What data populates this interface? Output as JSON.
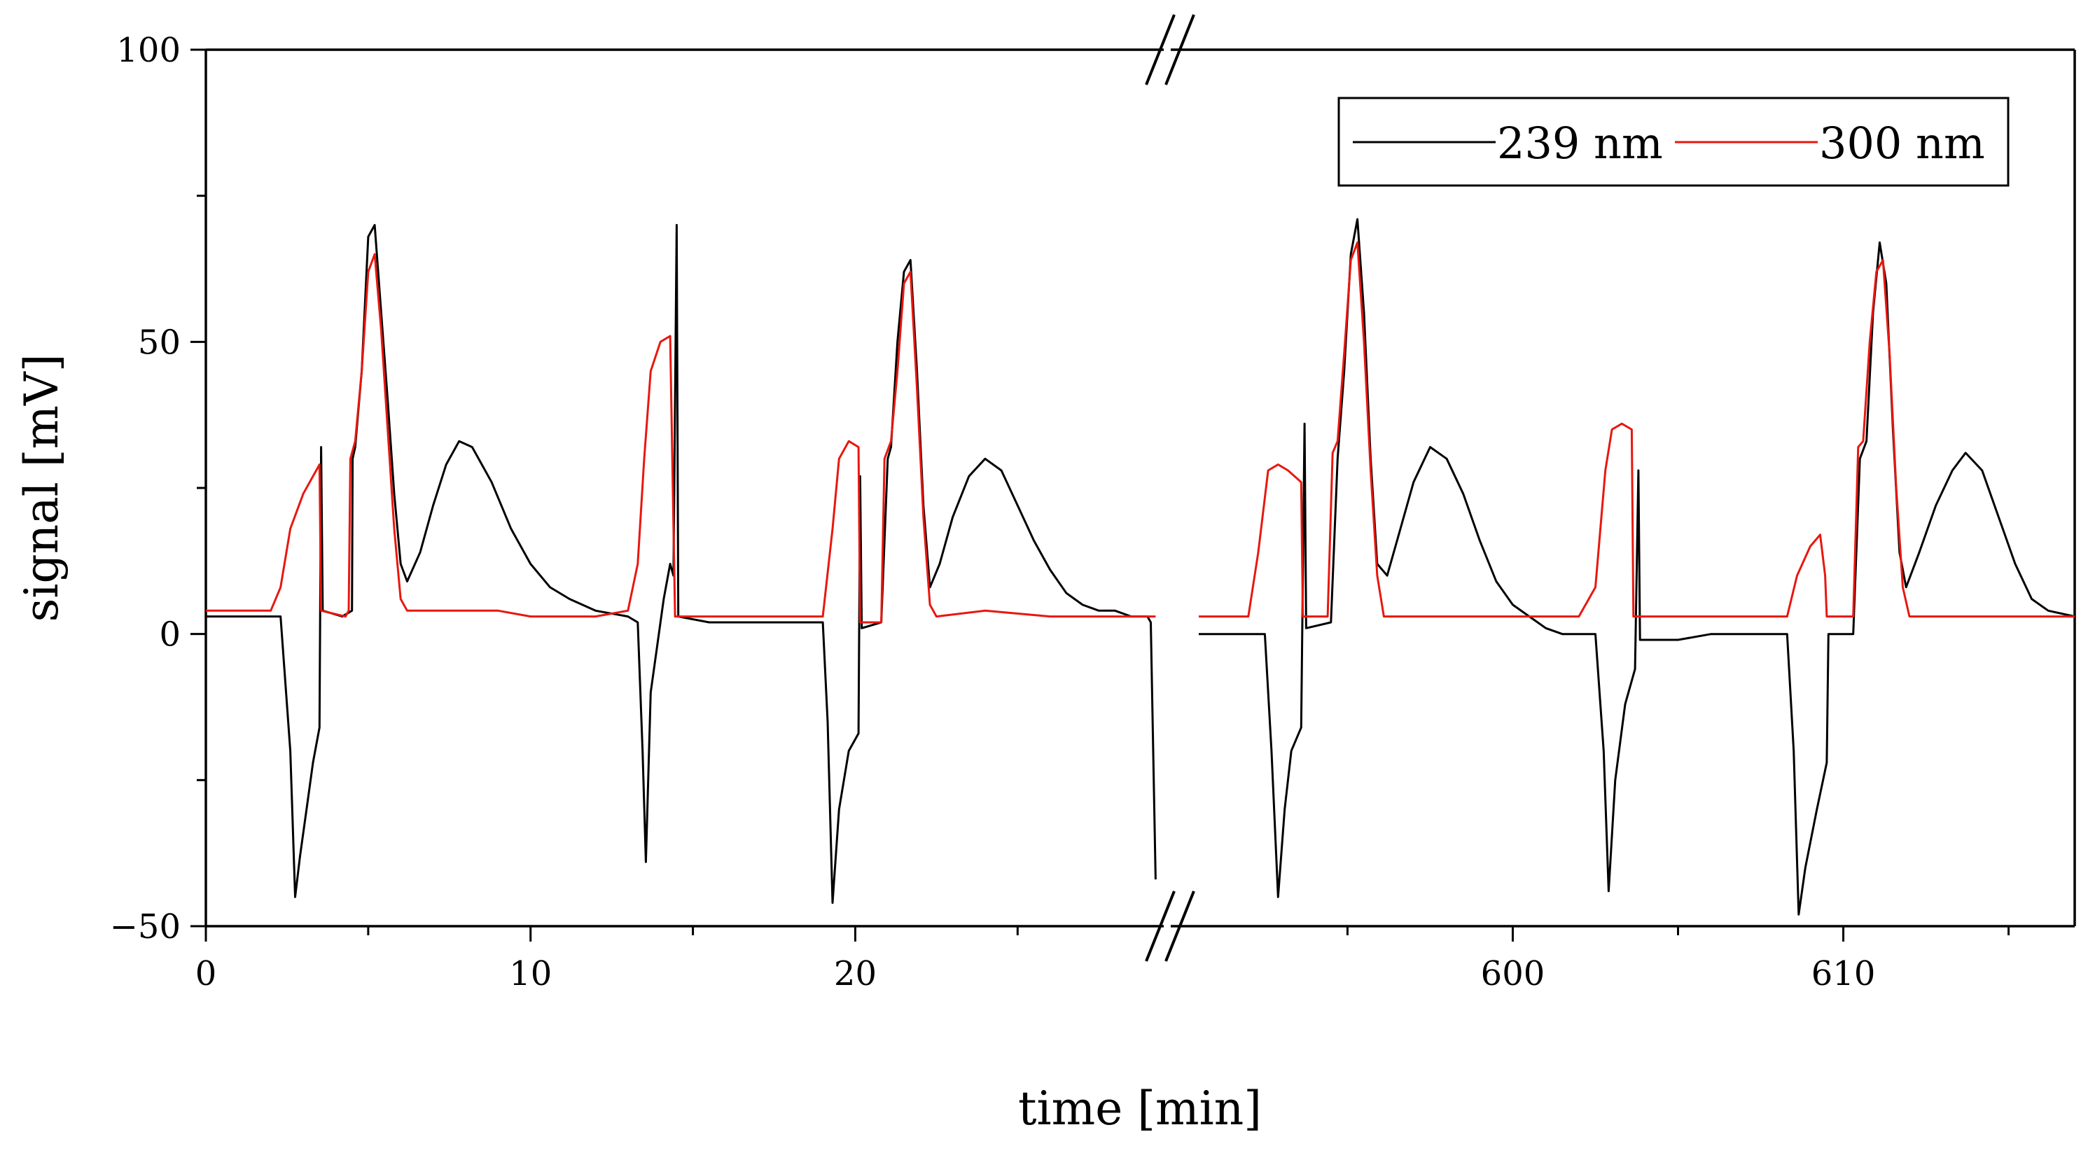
{
  "chart_data": {
    "type": "line",
    "title": "",
    "xlabel": "time [min]",
    "ylabel": "signal [mV]",
    "ylim": [
      -50,
      100
    ],
    "yticks": [
      -50,
      0,
      50,
      100
    ],
    "yticks_minor": [
      -25,
      25,
      75
    ],
    "x_segments": [
      {
        "xlim": [
          0,
          29.5
        ],
        "ticks": [
          0,
          10,
          20
        ],
        "minor_ticks": [
          5,
          15,
          25
        ]
      },
      {
        "xlim": [
          590.5,
          617
        ],
        "ticks": [
          600,
          610
        ],
        "minor_ticks": [
          595,
          605,
          615
        ]
      }
    ],
    "axis_break": "true",
    "legend": {
      "position": "top-right"
    },
    "series": [
      {
        "name": "239 nm",
        "color": "#000000",
        "segments": [
          [
            [
              0,
              3
            ],
            [
              2.3,
              3
            ],
            [
              2.6,
              -20
            ],
            [
              2.75,
              -45
            ],
            [
              2.9,
              -38
            ],
            [
              3.1,
              -30
            ],
            [
              3.3,
              -22
            ],
            [
              3.5,
              -16
            ],
            [
              3.55,
              32
            ],
            [
              3.6,
              4
            ],
            [
              4.2,
              3
            ],
            [
              4.5,
              4
            ],
            [
              4.52,
              30
            ],
            [
              4.6,
              32
            ],
            [
              4.8,
              45
            ],
            [
              5.0,
              68
            ],
            [
              5.2,
              70
            ],
            [
              5.4,
              55
            ],
            [
              5.6,
              40
            ],
            [
              5.8,
              24
            ],
            [
              6.0,
              12
            ],
            [
              6.2,
              9
            ],
            [
              6.6,
              14
            ],
            [
              7.0,
              22
            ],
            [
              7.4,
              29
            ],
            [
              7.8,
              33
            ],
            [
              8.2,
              32
            ],
            [
              8.8,
              26
            ],
            [
              9.4,
              18
            ],
            [
              10.0,
              12
            ],
            [
              10.6,
              8
            ],
            [
              11.2,
              6
            ],
            [
              12.0,
              4
            ],
            [
              13.0,
              3
            ],
            [
              13.3,
              2
            ],
            [
              13.45,
              -20
            ],
            [
              13.55,
              -39
            ],
            [
              13.7,
              -10
            ],
            [
              13.9,
              -2
            ],
            [
              14.1,
              6
            ],
            [
              14.3,
              12
            ],
            [
              14.4,
              10
            ],
            [
              14.5,
              70
            ],
            [
              14.55,
              3
            ],
            [
              15.5,
              2
            ],
            [
              17.0,
              2
            ],
            [
              19.0,
              2
            ],
            [
              19.15,
              -15
            ],
            [
              19.3,
              -46
            ],
            [
              19.5,
              -30
            ],
            [
              19.8,
              -20
            ],
            [
              20.1,
              -17
            ],
            [
              20.15,
              27
            ],
            [
              20.2,
              1
            ],
            [
              20.8,
              2
            ],
            [
              21.0,
              30
            ],
            [
              21.1,
              32
            ],
            [
              21.3,
              50
            ],
            [
              21.5,
              62
            ],
            [
              21.7,
              64
            ],
            [
              21.9,
              45
            ],
            [
              22.1,
              22
            ],
            [
              22.3,
              8
            ],
            [
              22.6,
              12
            ],
            [
              23.0,
              20
            ],
            [
              23.5,
              27
            ],
            [
              24.0,
              30
            ],
            [
              24.5,
              28
            ],
            [
              25.0,
              22
            ],
            [
              25.5,
              16
            ],
            [
              26.0,
              11
            ],
            [
              26.5,
              7
            ],
            [
              27.0,
              5
            ],
            [
              27.5,
              4
            ],
            [
              28.0,
              4
            ],
            [
              28.5,
              3
            ],
            [
              29.0,
              3
            ],
            [
              29.1,
              2
            ],
            [
              29.25,
              -42
            ]
          ],
          [
            [
              590.5,
              0
            ],
            [
              592.5,
              0
            ],
            [
              592.7,
              -20
            ],
            [
              592.9,
              -45
            ],
            [
              593.1,
              -30
            ],
            [
              593.3,
              -20
            ],
            [
              593.6,
              -16
            ],
            [
              593.7,
              36
            ],
            [
              593.75,
              1
            ],
            [
              594.5,
              2
            ],
            [
              594.7,
              30
            ],
            [
              594.9,
              45
            ],
            [
              595.1,
              65
            ],
            [
              595.3,
              71
            ],
            [
              595.5,
              55
            ],
            [
              595.7,
              30
            ],
            [
              595.9,
              12
            ],
            [
              596.2,
              10
            ],
            [
              596.6,
              18
            ],
            [
              597.0,
              26
            ],
            [
              597.5,
              32
            ],
            [
              598.0,
              30
            ],
            [
              598.5,
              24
            ],
            [
              599.0,
              16
            ],
            [
              599.5,
              9
            ],
            [
              600.0,
              5
            ],
            [
              600.5,
              3
            ],
            [
              601.0,
              1
            ],
            [
              601.5,
              0
            ],
            [
              602.5,
              0
            ],
            [
              602.75,
              -20
            ],
            [
              602.9,
              -44
            ],
            [
              603.1,
              -25
            ],
            [
              603.4,
              -12
            ],
            [
              603.7,
              -6
            ],
            [
              603.8,
              28
            ],
            [
              603.85,
              -1
            ],
            [
              605.0,
              -1
            ],
            [
              606.0,
              0
            ],
            [
              607.0,
              0
            ],
            [
              608.3,
              0
            ],
            [
              608.5,
              -20
            ],
            [
              608.65,
              -48
            ],
            [
              608.85,
              -40
            ],
            [
              609.2,
              -30
            ],
            [
              609.5,
              -22
            ],
            [
              609.55,
              0
            ],
            [
              610.3,
              0
            ],
            [
              610.5,
              30
            ],
            [
              610.7,
              33
            ],
            [
              610.9,
              55
            ],
            [
              611.1,
              67
            ],
            [
              611.3,
              60
            ],
            [
              611.5,
              35
            ],
            [
              611.7,
              14
            ],
            [
              611.9,
              8
            ],
            [
              612.3,
              14
            ],
            [
              612.8,
              22
            ],
            [
              613.3,
              28
            ],
            [
              613.7,
              31
            ],
            [
              614.2,
              28
            ],
            [
              614.7,
              20
            ],
            [
              615.2,
              12
            ],
            [
              615.7,
              6
            ],
            [
              616.2,
              4
            ],
            [
              617.0,
              3
            ]
          ]
        ]
      },
      {
        "name": "300 nm",
        "color": "#e8170f",
        "segments": [
          [
            [
              0,
              4
            ],
            [
              2.0,
              4
            ],
            [
              2.3,
              8
            ],
            [
              2.6,
              18
            ],
            [
              3.0,
              24
            ],
            [
              3.3,
              27
            ],
            [
              3.5,
              29
            ],
            [
              3.55,
              4
            ],
            [
              4.3,
              3
            ],
            [
              4.4,
              4
            ],
            [
              4.45,
              30
            ],
            [
              4.6,
              33
            ],
            [
              4.8,
              45
            ],
            [
              5.0,
              62
            ],
            [
              5.2,
              65
            ],
            [
              5.4,
              52
            ],
            [
              5.6,
              35
            ],
            [
              5.8,
              18
            ],
            [
              6.0,
              6
            ],
            [
              6.2,
              4
            ],
            [
              8.0,
              4
            ],
            [
              9.0,
              4
            ],
            [
              10.0,
              3
            ],
            [
              11.0,
              3
            ],
            [
              12.0,
              3
            ],
            [
              13.0,
              4
            ],
            [
              13.3,
              12
            ],
            [
              13.5,
              30
            ],
            [
              13.7,
              45
            ],
            [
              14.0,
              50
            ],
            [
              14.3,
              51
            ],
            [
              14.45,
              3
            ],
            [
              15.0,
              3
            ],
            [
              17.0,
              3
            ],
            [
              19.0,
              3
            ],
            [
              19.3,
              18
            ],
            [
              19.5,
              30
            ],
            [
              19.8,
              33
            ],
            [
              20.1,
              32
            ],
            [
              20.15,
              2
            ],
            [
              20.8,
              2
            ],
            [
              20.9,
              30
            ],
            [
              21.1,
              33
            ],
            [
              21.3,
              45
            ],
            [
              21.5,
              60
            ],
            [
              21.7,
              62
            ],
            [
              21.9,
              42
            ],
            [
              22.1,
              20
            ],
            [
              22.3,
              5
            ],
            [
              22.5,
              3
            ],
            [
              24.0,
              4
            ],
            [
              26.0,
              3
            ],
            [
              28.0,
              3
            ],
            [
              29.25,
              3
            ]
          ],
          [
            [
              590.5,
              3
            ],
            [
              592.0,
              3
            ],
            [
              592.3,
              14
            ],
            [
              592.6,
              28
            ],
            [
              592.9,
              29
            ],
            [
              593.2,
              28
            ],
            [
              593.6,
              26
            ],
            [
              593.65,
              3
            ],
            [
              594.4,
              3
            ],
            [
              594.55,
              31
            ],
            [
              594.7,
              33
            ],
            [
              594.9,
              48
            ],
            [
              595.1,
              64
            ],
            [
              595.3,
              67
            ],
            [
              595.5,
              50
            ],
            [
              595.7,
              28
            ],
            [
              595.9,
              10
            ],
            [
              596.1,
              3
            ],
            [
              598.0,
              3
            ],
            [
              600.0,
              3
            ],
            [
              602.0,
              3
            ],
            [
              602.5,
              8
            ],
            [
              602.8,
              28
            ],
            [
              603.0,
              35
            ],
            [
              603.3,
              36
            ],
            [
              603.6,
              35
            ],
            [
              603.65,
              3
            ],
            [
              605.0,
              3
            ],
            [
              607.0,
              3
            ],
            [
              608.3,
              3
            ],
            [
              608.6,
              10
            ],
            [
              609.0,
              15
            ],
            [
              609.3,
              17
            ],
            [
              609.45,
              10
            ],
            [
              609.5,
              3
            ],
            [
              610.3,
              3
            ],
            [
              610.45,
              32
            ],
            [
              610.6,
              33
            ],
            [
              610.8,
              50
            ],
            [
              611.0,
              62
            ],
            [
              611.2,
              64
            ],
            [
              611.4,
              48
            ],
            [
              611.6,
              25
            ],
            [
              611.8,
              8
            ],
            [
              612.0,
              3
            ],
            [
              614.0,
              3
            ],
            [
              616.0,
              3
            ],
            [
              617.0,
              3
            ]
          ]
        ]
      }
    ]
  }
}
